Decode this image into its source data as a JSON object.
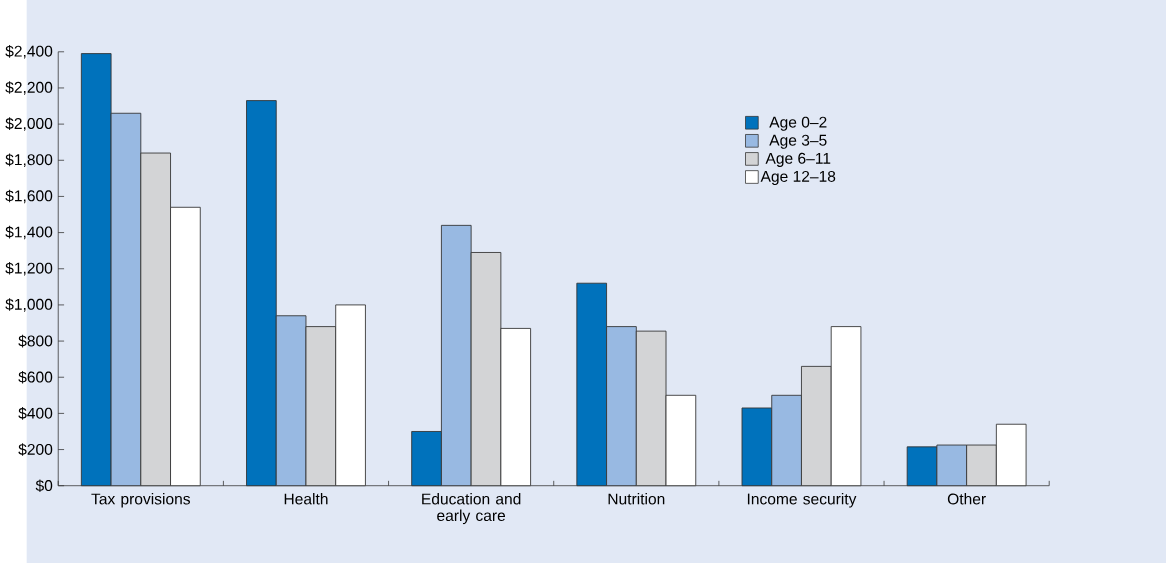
{
  "chart_data": {
    "type": "bar",
    "categories": [
      "Tax provisions",
      "Health",
      "Education and early care",
      "Nutrition",
      "Income security",
      "Other"
    ],
    "series": [
      {
        "name": "Age 0–2",
        "color": "#0072bc",
        "values": [
          2390,
          2130,
          300,
          1120,
          430,
          215
        ]
      },
      {
        "name": "Age 3–5",
        "color": "#98b9e2",
        "values": [
          2060,
          940,
          1440,
          880,
          500,
          225
        ]
      },
      {
        "name": "Age 6–11",
        "color": "#d3d4d6",
        "values": [
          1840,
          880,
          1290,
          855,
          660,
          225
        ]
      },
      {
        "name": "Age 12–18",
        "color": "#ffffff",
        "values": [
          1540,
          1000,
          870,
          500,
          880,
          340
        ]
      }
    ],
    "ylim": [
      0,
      2400
    ],
    "yticks": [
      {
        "value": 0,
        "label": "$0"
      },
      {
        "value": 200,
        "label": "$200"
      },
      {
        "value": 400,
        "label": "$400"
      },
      {
        "value": 600,
        "label": "$600"
      },
      {
        "value": 800,
        "label": "$800"
      },
      {
        "value": 1000,
        "label": "$1,000"
      },
      {
        "value": 1200,
        "label": "$1,200"
      },
      {
        "value": 1400,
        "label": "$1,400"
      },
      {
        "value": 1600,
        "label": "$1,600"
      },
      {
        "value": 1800,
        "label": "$1,800"
      },
      {
        "value": 2000,
        "label": "$2,000"
      },
      {
        "value": 2200,
        "label": "$2,200"
      },
      {
        "value": 2400,
        "label": "$2,400"
      }
    ],
    "legend": "top right"
  }
}
